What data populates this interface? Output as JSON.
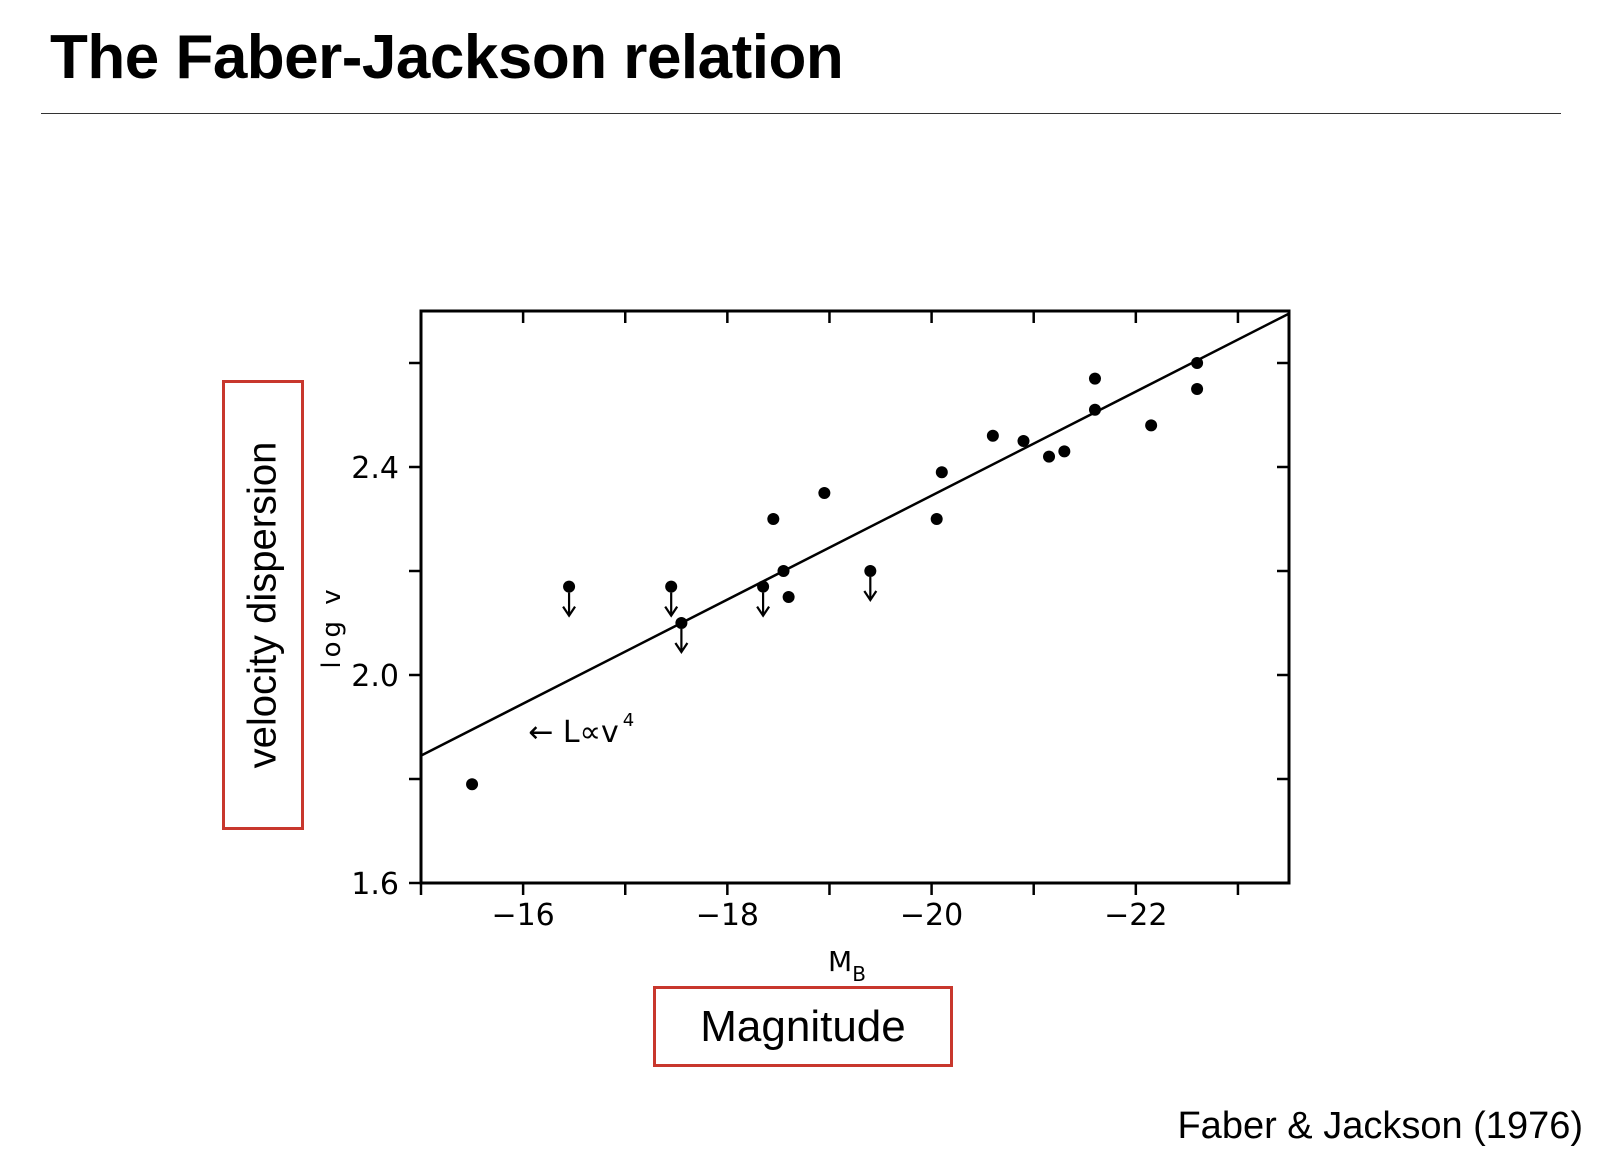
{
  "slide": {
    "title": "The Faber-Jackson relation",
    "citation": "Faber & Jackson (1976)",
    "y_callout": "velocity dispersion",
    "x_callout": "Magnitude"
  },
  "colors": {
    "callout_border": "#c8372d",
    "ink": "#000000"
  },
  "chart_data": {
    "type": "scatter",
    "xlabel_main": "M",
    "xlabel_sub": "B",
    "ylabel": "log v",
    "xlim": [
      -15.0,
      -23.5
    ],
    "ylim": [
      1.6,
      2.7
    ],
    "x_ticks": [
      -16,
      -18,
      -20,
      -22
    ],
    "x_tick_labels": [
      "−16",
      "−18",
      "−20",
      "−22"
    ],
    "x_minor_ticks": [
      -15,
      -17,
      -19,
      -21,
      -23
    ],
    "y_ticks": [
      1.6,
      2.0,
      2.4
    ],
    "y_tick_labels": [
      "1.6",
      "2.0",
      "2.4"
    ],
    "y_minor_ticks": [
      1.8,
      2.2,
      2.6
    ],
    "grid": false,
    "points": [
      {
        "x": -15.5,
        "y": 1.79,
        "upper_limit": false
      },
      {
        "x": -16.45,
        "y": 2.17,
        "upper_limit": true
      },
      {
        "x": -17.45,
        "y": 2.17,
        "upper_limit": true
      },
      {
        "x": -17.55,
        "y": 2.1,
        "upper_limit": true
      },
      {
        "x": -18.35,
        "y": 2.17,
        "upper_limit": true
      },
      {
        "x": -18.45,
        "y": 2.3,
        "upper_limit": false
      },
      {
        "x": -18.55,
        "y": 2.2,
        "upper_limit": false
      },
      {
        "x": -18.6,
        "y": 2.15,
        "upper_limit": false
      },
      {
        "x": -18.95,
        "y": 2.35,
        "upper_limit": false
      },
      {
        "x": -19.4,
        "y": 2.2,
        "upper_limit": true
      },
      {
        "x": -20.05,
        "y": 2.3,
        "upper_limit": false
      },
      {
        "x": -20.1,
        "y": 2.39,
        "upper_limit": false
      },
      {
        "x": -20.6,
        "y": 2.46,
        "upper_limit": false
      },
      {
        "x": -20.9,
        "y": 2.45,
        "upper_limit": false
      },
      {
        "x": -21.15,
        "y": 2.42,
        "upper_limit": false
      },
      {
        "x": -21.3,
        "y": 2.43,
        "upper_limit": false
      },
      {
        "x": -21.6,
        "y": 2.57,
        "upper_limit": false
      },
      {
        "x": -21.6,
        "y": 2.51,
        "upper_limit": false
      },
      {
        "x": -22.15,
        "y": 2.48,
        "upper_limit": false
      },
      {
        "x": -22.6,
        "y": 2.6,
        "upper_limit": false
      },
      {
        "x": -22.6,
        "y": 2.55,
        "upper_limit": false
      }
    ],
    "fit_line": {
      "x": [
        -15.0,
        -23.5
      ],
      "y": [
        1.845,
        2.695
      ]
    },
    "annotation": {
      "arrow": "←",
      "text": "L∝v",
      "superscript": "4",
      "x": -16.05,
      "y": 1.89
    }
  }
}
